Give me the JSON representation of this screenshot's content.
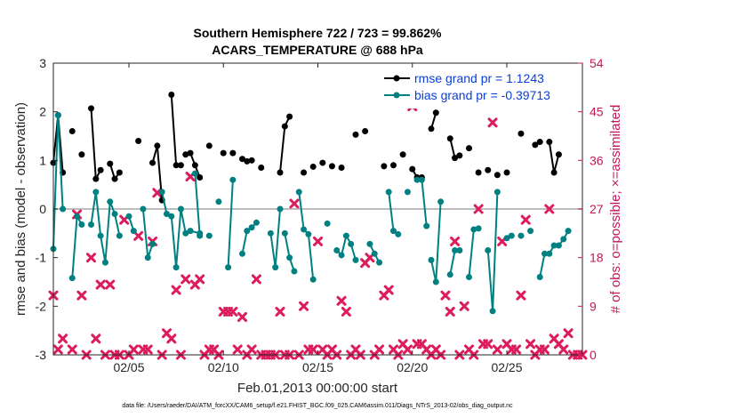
{
  "chart_data": {
    "type": "line",
    "title": "Southern Hemisphere 722 / 723 = 99.862%",
    "subtitle": "ACARS_TEMPERATURE @ 688 hPa",
    "xlabel": "Feb.01,2013 00:00:00 start",
    "ylabel": "rmse and bias (model - observation)",
    "y2label": "# of obs: o=possible; ×=assimilated",
    "footnote": "data file: /Users/raeder/DAI/ATM_forcXX/CAM6_setup/f.e21.FHIST_BGC.f09_025.CAM6assim.011/Diags_NTrS_2013-02/obs_diag_output.nc",
    "xlim": [
      1,
      29
    ],
    "ylim": [
      -3,
      3
    ],
    "y2lim": [
      0,
      54
    ],
    "x_ticks": [
      5,
      10,
      15,
      20,
      25
    ],
    "x_tick_labels": [
      "02/05",
      "02/10",
      "02/15",
      "02/20",
      "02/25"
    ],
    "y_ticks": [
      -3,
      -2,
      -1,
      0,
      1,
      2,
      3
    ],
    "y_tick_labels": [
      "-3",
      "-2",
      "-1",
      "0",
      "1",
      "2",
      "3"
    ],
    "y2_ticks": [
      0,
      9,
      18,
      27,
      36,
      45,
      54
    ],
    "y2_tick_labels": [
      "0",
      "9",
      "18",
      "27",
      "36",
      "45",
      "54"
    ],
    "legend_position": "top-right",
    "zero_line": 0,
    "colors": {
      "rmse": "#000000",
      "bias": "#008080",
      "obs": "#dc1c5c",
      "right_axis": "#c2185b",
      "legend_text": "#0a3fd6"
    },
    "series": [
      {
        "name": "rmse grand pr = 1.1243",
        "segments": [
          [
            [
              1.0,
              0.95
            ],
            [
              1.25,
              1.93
            ],
            [
              1.5,
              0.75
            ]
          ],
          [
            [
              2.0,
              1.6
            ]
          ],
          [
            [
              2.5,
              1.12
            ]
          ],
          [
            [
              3.0,
              2.07
            ],
            [
              3.25,
              0.62
            ],
            [
              3.5,
              0.8
            ]
          ],
          [
            [
              4.0,
              0.93
            ],
            [
              4.25,
              0.62
            ],
            [
              4.5,
              0.75
            ]
          ],
          [
            [
              5.5,
              1.4
            ]
          ],
          [
            [
              6.25,
              0.95
            ],
            [
              6.5,
              1.3
            ],
            [
              6.75,
              0.18
            ]
          ],
          [
            [
              7.25,
              2.35
            ],
            [
              7.5,
              0.9
            ],
            [
              7.75,
              0.9
            ]
          ],
          [
            [
              8.0,
              1.12
            ],
            [
              8.25,
              1.15
            ],
            [
              8.5,
              0.9
            ],
            [
              8.75,
              0.65
            ]
          ],
          [
            [
              9.25,
              1.3
            ]
          ],
          [
            [
              10.0,
              1.15
            ]
          ],
          [
            [
              10.5,
              1.15
            ]
          ],
          [
            [
              11.0,
              1.03
            ],
            [
              11.25,
              0.98
            ],
            [
              11.5,
              1.0
            ]
          ],
          [
            [
              12.0,
              0.85
            ]
          ],
          [
            [
              13.0,
              0.75
            ],
            [
              13.25,
              1.7
            ],
            [
              13.5,
              1.9
            ]
          ],
          [
            [
              14.25,
              0.75
            ]
          ],
          [
            [
              14.75,
              0.87
            ]
          ],
          [
            [
              15.25,
              0.95
            ]
          ],
          [
            [
              15.75,
              0.88
            ]
          ],
          [
            [
              16.25,
              0.85
            ]
          ],
          [
            [
              17.0,
              1.53
            ]
          ],
          [
            [
              17.5,
              1.6
            ]
          ],
          [
            [
              18.5,
              0.88
            ]
          ],
          [
            [
              19.0,
              0.9
            ]
          ],
          [
            [
              19.5,
              1.12
            ]
          ],
          [
            [
              20.0,
              0.82
            ],
            [
              20.25,
              0.65
            ],
            [
              20.5,
              0.65
            ]
          ],
          [
            [
              21.0,
              1.65
            ],
            [
              21.25,
              1.98
            ]
          ],
          [
            [
              22.0,
              1.45
            ],
            [
              22.25,
              1.05
            ],
            [
              22.5,
              1.1
            ]
          ],
          [
            [
              23.0,
              1.25
            ]
          ],
          [
            [
              23.5,
              0.75
            ]
          ],
          [
            [
              24.0,
              0.8
            ]
          ],
          [
            [
              24.5,
              0.7
            ]
          ],
          [
            [
              25.0,
              0.75
            ]
          ],
          [
            [
              25.75,
              1.55
            ]
          ],
          [
            [
              26.5,
              1.32
            ],
            [
              26.75,
              1.38
            ]
          ],
          [
            [
              27.25,
              1.38
            ],
            [
              27.5,
              0.75
            ],
            [
              27.75,
              1.12
            ]
          ]
        ]
      },
      {
        "name": "bias grand pr = -0.39713",
        "segments": [
          [
            [
              1.0,
              -0.82
            ],
            [
              1.25,
              1.93
            ],
            [
              1.5,
              0.0
            ]
          ],
          [
            [
              2.0,
              -1.42
            ],
            [
              2.25,
              -0.15
            ],
            [
              2.5,
              -0.32
            ]
          ],
          [
            [
              3.0,
              -0.32
            ],
            [
              3.25,
              0.35
            ],
            [
              3.5,
              -0.55
            ],
            [
              3.75,
              -1.1
            ],
            [
              4.0,
              0.15
            ],
            [
              4.25,
              -0.1
            ],
            [
              4.5,
              -0.55
            ]
          ],
          [
            [
              5.0,
              -0.15
            ],
            [
              5.25,
              -0.45
            ]
          ],
          [
            [
              5.75,
              0.0
            ],
            [
              6.0,
              -1.0
            ],
            [
              6.25,
              -0.72
            ]
          ],
          [
            [
              6.75,
              0.35
            ],
            [
              7.0,
              -0.1
            ],
            [
              7.25,
              -0.15
            ],
            [
              7.5,
              -1.2
            ],
            [
              7.75,
              0.0
            ],
            [
              8.0,
              -0.5
            ],
            [
              8.25,
              -0.45
            ],
            [
              8.75,
              -0.5
            ]
          ],
          [
            [
              8.5,
              0.73
            ],
            [
              8.75,
              -0.55
            ]
          ],
          [
            [
              9.25,
              -0.55
            ]
          ],
          [
            [
              9.75,
              0.15
            ]
          ],
          [
            [
              10.25,
              -1.2
            ],
            [
              10.5,
              0.6
            ]
          ],
          [
            [
              11.0,
              -0.92
            ],
            [
              11.25,
              -0.45
            ],
            [
              11.5,
              -0.38
            ],
            [
              11.75,
              -0.28
            ]
          ],
          [
            [
              12.5,
              -0.5
            ],
            [
              12.75,
              -1.2
            ],
            [
              13.0,
              0.0
            ]
          ],
          [
            [
              13.25,
              -0.5
            ],
            [
              13.5,
              -1.0
            ],
            [
              13.75,
              -1.28
            ]
          ],
          [
            [
              14.0,
              0.35
            ],
            [
              14.25,
              -0.42
            ],
            [
              14.5,
              -0.52
            ],
            [
              14.75,
              -1.45
            ]
          ],
          [
            [
              15.5,
              -0.3
            ]
          ],
          [
            [
              16.0,
              -0.85
            ],
            [
              16.25,
              -0.95
            ],
            [
              16.5,
              -0.55
            ],
            [
              16.75,
              -0.72
            ],
            [
              17.0,
              -1.05
            ]
          ],
          [
            [
              17.75,
              -0.72
            ],
            [
              18.0,
              -0.92
            ],
            [
              18.25,
              -1.1
            ]
          ],
          [
            [
              18.75,
              0.35
            ],
            [
              19.0,
              -0.45
            ],
            [
              19.25,
              -0.52
            ]
          ],
          [
            [
              19.75,
              0.35
            ]
          ],
          [
            [
              20.25,
              0.6
            ],
            [
              20.5,
              0.6
            ],
            [
              20.75,
              -0.35
            ]
          ],
          [
            [
              21.0,
              -1.05
            ],
            [
              21.25,
              -1.5
            ],
            [
              21.5,
              0.15
            ]
          ],
          [
            [
              22.0,
              -1.35
            ],
            [
              22.25,
              -0.85
            ],
            [
              22.5,
              -0.85
            ]
          ],
          [
            [
              23.0,
              -1.4
            ],
            [
              23.25,
              -0.42
            ],
            [
              23.5,
              -0.4
            ]
          ],
          [
            [
              24.0,
              -0.85
            ],
            [
              24.25,
              -2.1
            ],
            [
              24.5,
              0.35
            ]
          ],
          [
            [
              25.0,
              -0.6
            ]
          ],
          [
            [
              25.25,
              -0.55
            ]
          ],
          [
            [
              25.75,
              -0.55
            ]
          ],
          [
            [
              26.25,
              -0.45
            ]
          ],
          [
            [
              26.75,
              -1.4
            ],
            [
              27.0,
              -0.92
            ],
            [
              27.25,
              -0.92
            ],
            [
              27.5,
              -0.75
            ],
            [
              27.75,
              -0.75
            ],
            [
              28.0,
              -0.62
            ],
            [
              28.25,
              -0.45
            ]
          ]
        ]
      }
    ],
    "obs_counts": [
      [
        1.0,
        11
      ],
      [
        1.25,
        1
      ],
      [
        1.5,
        3
      ],
      [
        2.0,
        1
      ],
      [
        2.25,
        26
      ],
      [
        2.5,
        11
      ],
      [
        2.75,
        0
      ],
      [
        3.0,
        18
      ],
      [
        3.25,
        3
      ],
      [
        3.5,
        13
      ],
      [
        3.75,
        0
      ],
      [
        4.0,
        13
      ],
      [
        4.25,
        0
      ],
      [
        4.5,
        0
      ],
      [
        4.75,
        25
      ],
      [
        5.0,
        0
      ],
      [
        5.25,
        1
      ],
      [
        5.5,
        22
      ],
      [
        5.75,
        1
      ],
      [
        6.0,
        1
      ],
      [
        6.25,
        21
      ],
      [
        6.5,
        30
      ],
      [
        6.75,
        0
      ],
      [
        7.0,
        4
      ],
      [
        7.25,
        3
      ],
      [
        7.5,
        12
      ],
      [
        7.75,
        0
      ],
      [
        8.0,
        14
      ],
      [
        8.25,
        33
      ],
      [
        8.5,
        13
      ],
      [
        8.75,
        14
      ],
      [
        9.0,
        0
      ],
      [
        9.25,
        1
      ],
      [
        9.5,
        1
      ],
      [
        9.75,
        0
      ],
      [
        10.0,
        8
      ],
      [
        10.25,
        8
      ],
      [
        10.5,
        8
      ],
      [
        10.75,
        1
      ],
      [
        11.0,
        7
      ],
      [
        11.25,
        0
      ],
      [
        11.5,
        1
      ],
      [
        11.75,
        14
      ],
      [
        12.0,
        0
      ],
      [
        12.25,
        0
      ],
      [
        12.5,
        0
      ],
      [
        12.75,
        0
      ],
      [
        13.0,
        8
      ],
      [
        13.25,
        0
      ],
      [
        13.5,
        0
      ],
      [
        13.75,
        28
      ],
      [
        14.0,
        0
      ],
      [
        14.25,
        9
      ],
      [
        14.5,
        1
      ],
      [
        14.75,
        1
      ],
      [
        15.0,
        21
      ],
      [
        15.25,
        1
      ],
      [
        15.5,
        0
      ],
      [
        15.75,
        1
      ],
      [
        16.0,
        0
      ],
      [
        16.25,
        10
      ],
      [
        16.5,
        8
      ],
      [
        16.75,
        0
      ],
      [
        17.0,
        1
      ],
      [
        17.25,
        0
      ],
      [
        17.5,
        17
      ],
      [
        17.75,
        18
      ],
      [
        18.0,
        0
      ],
      [
        18.25,
        1
      ],
      [
        18.5,
        11
      ],
      [
        18.75,
        12
      ],
      [
        19.0,
        1
      ],
      [
        19.25,
        0
      ],
      [
        19.5,
        2
      ],
      [
        19.75,
        1
      ],
      [
        20.0,
        46
      ],
      [
        20.25,
        2
      ],
      [
        20.5,
        2
      ],
      [
        20.75,
        1
      ],
      [
        21.0,
        0
      ],
      [
        21.25,
        1
      ],
      [
        21.5,
        0
      ],
      [
        21.75,
        11
      ],
      [
        22.0,
        8
      ],
      [
        22.25,
        21
      ],
      [
        22.5,
        0
      ],
      [
        22.75,
        9
      ],
      [
        23.0,
        1
      ],
      [
        23.25,
        0
      ],
      [
        23.5,
        27
      ],
      [
        23.75,
        2
      ],
      [
        24.0,
        2
      ],
      [
        24.25,
        43
      ],
      [
        24.5,
        1
      ],
      [
        24.75,
        21
      ],
      [
        25.0,
        2
      ],
      [
        25.25,
        1
      ],
      [
        25.5,
        1
      ],
      [
        25.75,
        11
      ],
      [
        26.0,
        25
      ],
      [
        26.25,
        2
      ],
      [
        26.5,
        0
      ],
      [
        26.75,
        1
      ],
      [
        27.0,
        1
      ],
      [
        27.25,
        27
      ],
      [
        27.5,
        3
      ],
      [
        27.75,
        2
      ],
      [
        28.0,
        1
      ],
      [
        28.25,
        4
      ],
      [
        28.5,
        0
      ],
      [
        28.75,
        0
      ],
      [
        29.0,
        0
      ]
    ]
  }
}
